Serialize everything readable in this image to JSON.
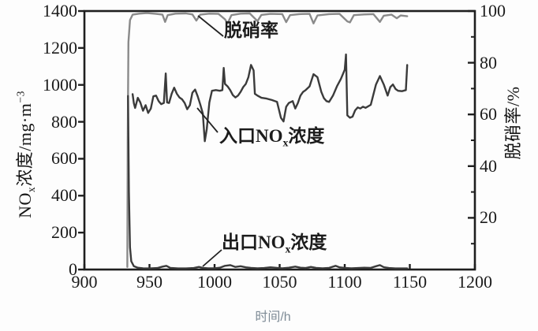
{
  "figure": {
    "annotations": {
      "denitration": {
        "label": "脱硝率"
      },
      "inlet": {
        "prefix": "入口NO",
        "sub": "x",
        "suffix": "浓度"
      },
      "outlet": {
        "prefix": "出口NO",
        "sub": "x",
        "suffix": "浓度"
      }
    },
    "axis_titles": {
      "left_prefix": "NO",
      "left_sub": "x",
      "left_mid": "浓度/mg·m",
      "left_sup": "−3",
      "right": "脱硝率/%",
      "bottom": "时间/h"
    },
    "colors": {
      "frame": "#1f1f1f",
      "tick_text": "#1b1b1b",
      "pointer_line": "#222222",
      "x_title_text": "#7e8b96"
    }
  },
  "chart_data": {
    "type": "line",
    "title": "",
    "xlabel": "时间/h",
    "ylabel_left": "NOx浓度/mg·m−3",
    "ylabel_right": "脱硝率/%",
    "grid": false,
    "legend": "inline-annotations-with-pointer-lines",
    "x_axis": {
      "range": [
        900,
        1200
      ],
      "ticks": [
        900,
        950,
        1000,
        1050,
        1100,
        1150,
        1200
      ]
    },
    "y_axis_left": {
      "range": [
        0,
        1400
      ],
      "ticks": [
        0,
        200,
        400,
        600,
        800,
        1000,
        1200,
        1400
      ]
    },
    "y_axis_right": {
      "range": [
        0,
        100
      ],
      "ticks": [
        20,
        40,
        60,
        80,
        100
      ],
      "minor_ticks": [
        10,
        30,
        50,
        70,
        90
      ]
    },
    "series": [
      {
        "id": "denitration-rate",
        "name": "脱硝率",
        "axis": "right",
        "color": "#8a8a8a",
        "unit": "%",
        "points": [
          [
            933,
            1
          ],
          [
            933.3,
            50
          ],
          [
            933.8,
            88
          ],
          [
            935,
            96.5
          ],
          [
            937,
            98.6
          ],
          [
            942,
            99
          ],
          [
            948,
            99.2
          ],
          [
            955,
            98.9
          ],
          [
            960,
            98.6
          ],
          [
            962,
            95.8
          ],
          [
            964,
            98.4
          ],
          [
            970,
            99
          ],
          [
            978,
            99.1
          ],
          [
            983,
            98.7
          ],
          [
            986,
            96.3
          ],
          [
            989,
            98.6
          ],
          [
            996,
            99
          ],
          [
            1003,
            98.9
          ],
          [
            1008,
            96.8
          ],
          [
            1010,
            95.2
          ],
          [
            1013,
            98.4
          ],
          [
            1020,
            99
          ],
          [
            1027,
            99.1
          ],
          [
            1033,
            96.1
          ],
          [
            1036,
            98.5
          ],
          [
            1043,
            98.9
          ],
          [
            1052,
            98.8
          ],
          [
            1055,
            95.7
          ],
          [
            1058,
            98.4
          ],
          [
            1065,
            98.8
          ],
          [
            1073,
            98.9
          ],
          [
            1076,
            95.2
          ],
          [
            1079,
            98.3
          ],
          [
            1088,
            98.8
          ],
          [
            1096,
            98.9
          ],
          [
            1102,
            96
          ],
          [
            1104,
            95.6
          ],
          [
            1107,
            98.4
          ],
          [
            1115,
            98.7
          ],
          [
            1122,
            98.8
          ],
          [
            1127,
            95.8
          ],
          [
            1130,
            98.2
          ],
          [
            1136,
            98.6
          ],
          [
            1140,
            97.2
          ],
          [
            1143,
            98.3
          ],
          [
            1148,
            98
          ]
        ]
      },
      {
        "id": "inlet-nox",
        "name": "入口NOx浓度",
        "axis": "left",
        "color": "#3b3b3b",
        "unit": "mg·m−3",
        "points": [
          [
            937,
            950
          ],
          [
            938,
            900
          ],
          [
            939,
            875
          ],
          [
            941,
            930
          ],
          [
            943,
            905
          ],
          [
            945,
            860
          ],
          [
            947,
            890
          ],
          [
            949,
            848
          ],
          [
            951,
            872
          ],
          [
            953,
            938
          ],
          [
            955,
            942
          ],
          [
            957,
            912
          ],
          [
            959,
            896
          ],
          [
            961,
            902
          ],
          [
            962.5,
            1062
          ],
          [
            963.5,
            905
          ],
          [
            965,
            902
          ],
          [
            967,
            952
          ],
          [
            969,
            985
          ],
          [
            971,
            952
          ],
          [
            973,
            932
          ],
          [
            975,
            922
          ],
          [
            977,
            902
          ],
          [
            979,
            868
          ],
          [
            981,
            890
          ],
          [
            983,
            958
          ],
          [
            985,
            975
          ],
          [
            987,
            938
          ],
          [
            989,
            895
          ],
          [
            991,
            845
          ],
          [
            992.5,
            695
          ],
          [
            994,
            760
          ],
          [
            996,
            905
          ],
          [
            998,
            968
          ],
          [
            1001,
            972
          ],
          [
            1004,
            968
          ],
          [
            1006,
            972
          ],
          [
            1007,
            1092
          ],
          [
            1008,
            1005
          ],
          [
            1010,
            992
          ],
          [
            1012,
            972
          ],
          [
            1014,
            945
          ],
          [
            1016,
            932
          ],
          [
            1018,
            942
          ],
          [
            1020,
            962
          ],
          [
            1022,
            988
          ],
          [
            1024,
            1005
          ],
          [
            1026,
            1042
          ],
          [
            1028,
            1108
          ],
          [
            1030,
            1078
          ],
          [
            1031,
            952
          ],
          [
            1033,
            942
          ],
          [
            1036,
            930
          ],
          [
            1040,
            926
          ],
          [
            1044,
            918
          ],
          [
            1048,
            908
          ],
          [
            1051,
            822
          ],
          [
            1053,
            802
          ],
          [
            1055,
            882
          ],
          [
            1057,
            902
          ],
          [
            1060,
            912
          ],
          [
            1062,
            872
          ],
          [
            1064,
            902
          ],
          [
            1066,
            942
          ],
          [
            1068,
            962
          ],
          [
            1070,
            972
          ],
          [
            1073,
            992
          ],
          [
            1076,
            1058
          ],
          [
            1079,
            1042
          ],
          [
            1082,
            962
          ],
          [
            1084,
            928
          ],
          [
            1086,
            912
          ],
          [
            1088,
            908
          ],
          [
            1091,
            942
          ],
          [
            1094,
            992
          ],
          [
            1097,
            1032
          ],
          [
            1100,
            1082
          ],
          [
            1101,
            1165
          ],
          [
            1102,
            835
          ],
          [
            1104,
            822
          ],
          [
            1106,
            828
          ],
          [
            1108,
            862
          ],
          [
            1110,
            878
          ],
          [
            1112,
            872
          ],
          [
            1114,
            882
          ],
          [
            1116,
            876
          ],
          [
            1120,
            892
          ],
          [
            1124,
            1002
          ],
          [
            1127,
            1048
          ],
          [
            1130,
            1002
          ],
          [
            1133,
            942
          ],
          [
            1135,
            988
          ],
          [
            1137,
            1002
          ],
          [
            1139,
            978
          ],
          [
            1141,
            968
          ],
          [
            1144,
            966
          ],
          [
            1147,
            972
          ],
          [
            1148,
            1108
          ]
        ]
      },
      {
        "id": "outlet-nox",
        "name": "出口NOx浓度",
        "axis": "left",
        "color": "#3b3b3b",
        "unit": "mg·m−3",
        "points": [
          [
            933.5,
            940
          ],
          [
            934.2,
            420
          ],
          [
            935,
            120
          ],
          [
            936,
            45
          ],
          [
            938,
            18
          ],
          [
            941,
            10
          ],
          [
            945,
            7
          ],
          [
            950,
            6
          ],
          [
            956,
            8
          ],
          [
            960,
            16
          ],
          [
            963,
            20
          ],
          [
            966,
            9
          ],
          [
            972,
            6
          ],
          [
            978,
            6
          ],
          [
            984,
            8
          ],
          [
            988,
            14
          ],
          [
            991,
            9
          ],
          [
            995,
            7
          ],
          [
            1000,
            7
          ],
          [
            1004,
            10
          ],
          [
            1008,
            20
          ],
          [
            1012,
            24
          ],
          [
            1016,
            14
          ],
          [
            1020,
            18
          ],
          [
            1024,
            12
          ],
          [
            1028,
            9
          ],
          [
            1033,
            7
          ],
          [
            1038,
            8
          ],
          [
            1043,
            12
          ],
          [
            1048,
            9
          ],
          [
            1052,
            7
          ],
          [
            1057,
            10
          ],
          [
            1062,
            16
          ],
          [
            1066,
            10
          ],
          [
            1070,
            8
          ],
          [
            1074,
            14
          ],
          [
            1078,
            9
          ],
          [
            1083,
            7
          ],
          [
            1088,
            9
          ],
          [
            1093,
            20
          ],
          [
            1096,
            12
          ],
          [
            1100,
            9
          ],
          [
            1105,
            7
          ],
          [
            1110,
            8
          ],
          [
            1115,
            10
          ],
          [
            1120,
            9
          ],
          [
            1124,
            18
          ],
          [
            1127,
            24
          ],
          [
            1130,
            13
          ],
          [
            1134,
            8
          ],
          [
            1139,
            6
          ],
          [
            1144,
            6
          ],
          [
            1148,
            6
          ]
        ]
      }
    ]
  }
}
